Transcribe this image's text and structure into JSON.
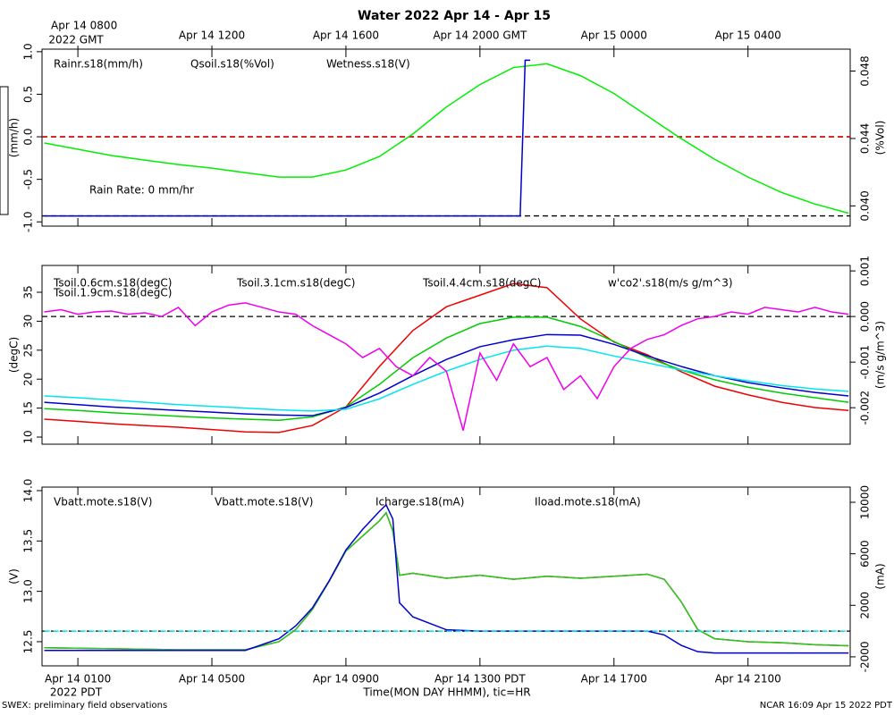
{
  "title": "Water 2022 Apr 14 - Apr 15",
  "footer_left": "SWEX: preliminary field observations",
  "footer_right": "NCAR 16:09 Apr 15 2022 PDT",
  "chart_data": [
    {
      "type": "line",
      "xlim": [
        -0.07,
        24.05
      ],
      "xticks": [
        1,
        5,
        9,
        13,
        17,
        21
      ],
      "x2ticks": [
        {
          "value": 1,
          "label": "Apr 14 0800"
        },
        {
          "value": 5,
          "label": "Apr 14 1200"
        },
        {
          "value": 9,
          "label": "Apr 14 1600"
        },
        {
          "value": 13,
          "label": "Apr 14 2000 GMT"
        },
        {
          "value": 17,
          "label": "Apr 15 0000"
        },
        {
          "value": 21,
          "label": "Apr 15 0400"
        }
      ],
      "x2_sublabel": "2022 GMT",
      "ylim": [
        -1.05,
        1.03
      ],
      "yticks": [
        {
          "value": -1,
          "label": "-1.0"
        },
        -0.5,
        {
          "value": 0,
          "label": "0.0"
        },
        0.5,
        {
          "value": 1,
          "label": "1.0"
        }
      ],
      "ylabel": "(mm/h)",
      "y2lim": [
        0.0388,
        0.0493
      ],
      "y2ticks": [
        {
          "value": 0.04,
          "label": "0.040"
        },
        0.044,
        0.048
      ],
      "y2label": "(%Vol)",
      "ref_lines": [
        0,
        -0.93
      ],
      "annotation": "Rain Rate: 0 mm/hr",
      "x": [
        0,
        1,
        2,
        3,
        4,
        5,
        6,
        7,
        8,
        9,
        10,
        11,
        12,
        13,
        14,
        15,
        16,
        17,
        18,
        19,
        20,
        21,
        22,
        23,
        24
      ],
      "series": [
        {
          "name": "Rainr.s18(mm/h)",
          "color": "#ee0000",
          "dash": true,
          "x": [
            -0.07,
            24.05
          ],
          "values": [
            0,
            0
          ]
        },
        {
          "name": "Qsoil.s18(%Vol)",
          "color": "#00ee00",
          "axis": "y2",
          "values": [
            0.04373,
            0.04336,
            0.04299,
            0.04272,
            0.04245,
            0.04224,
            0.04197,
            0.04171,
            0.04171,
            0.04213,
            0.04293,
            0.04427,
            0.04587,
            0.0472,
            0.04821,
            0.04843,
            0.04773,
            0.04667,
            0.04533,
            0.044,
            0.04277,
            0.04171,
            0.0408,
            0.04011,
            0.03957
          ]
        },
        {
          "name": "Wetness.s18(V)",
          "color": "#0000cc",
          "x": [
            0,
            14.2,
            14.35,
            14.5
          ],
          "values": [
            -0.93,
            -0.93,
            0.9,
            0.9
          ]
        }
      ]
    },
    {
      "type": "line",
      "xlim": [
        -0.07,
        24.05
      ],
      "xticks": [
        1,
        5,
        9,
        13,
        17,
        21
      ],
      "ylim": [
        8.77,
        39.63
      ],
      "yticks": [
        10,
        15,
        20,
        25,
        30,
        35
      ],
      "ylabel": "(degC)",
      "y2lim": [
        -0.0028,
        0.00112
      ],
      "y2ticks": [
        -0.002,
        -0.001,
        {
          "value": 0,
          "label": "0.000"
        },
        0.001
      ],
      "y2label": "(m/s g/m^3)",
      "y2ref_lines": [
        0
      ],
      "x": [
        0,
        1,
        2,
        3,
        4,
        5,
        6,
        7,
        8,
        9,
        10,
        11,
        12,
        13,
        14,
        15,
        16,
        17,
        18,
        19,
        20,
        21,
        22,
        23,
        24
      ],
      "series": [
        {
          "name": "Tsoil.0.6cm.s18(degC)",
          "color": "#ee0000",
          "values": [
            13.1,
            12.7,
            12.3,
            12.0,
            11.7,
            11.3,
            10.9,
            10.8,
            12.0,
            15.2,
            22.2,
            28.4,
            32.5,
            34.5,
            36.5,
            35.8,
            30.4,
            26.4,
            24.2,
            21.3,
            18.8,
            17.3,
            16.0,
            15.1,
            14.6
          ]
        },
        {
          "name": "Tsoil.1.9cm.s18(degC)",
          "color": "#00cc00",
          "values": [
            14.9,
            14.6,
            14.2,
            13.9,
            13.6,
            13.3,
            13.1,
            12.9,
            13.5,
            15.2,
            19.1,
            23.7,
            27.1,
            29.6,
            30.7,
            30.7,
            29.1,
            26.5,
            23.7,
            21.6,
            19.9,
            18.6,
            17.6,
            16.8,
            16.0
          ]
        },
        {
          "name": "Tsoil.3.1cm.s18(degC)",
          "color": "#0000cc",
          "values": [
            16.0,
            15.6,
            15.2,
            14.9,
            14.6,
            14.3,
            14.0,
            13.8,
            13.7,
            15.1,
            17.6,
            20.6,
            23.4,
            25.6,
            26.8,
            27.7,
            27.6,
            26.0,
            24.0,
            22.2,
            20.6,
            19.4,
            18.5,
            17.7,
            17.1
          ]
        },
        {
          "name": "Tsoil.4.4cm.s18(degC)",
          "color": "#00e5ee",
          "values": [
            17.1,
            16.8,
            16.4,
            16.0,
            15.6,
            15.3,
            15.0,
            14.7,
            14.5,
            14.8,
            16.6,
            19.1,
            21.4,
            23.4,
            25.0,
            25.7,
            25.3,
            24.0,
            22.8,
            21.6,
            20.6,
            19.7,
            18.9,
            18.3,
            17.9
          ]
        },
        {
          "name": "w'co2'.s18(m/s g/m^3)",
          "color": "#ee00ee",
          "axis": "y2",
          "x": [
            0,
            0.5,
            1,
            1.5,
            2,
            2.5,
            3,
            3.5,
            4,
            4.5,
            5,
            5.5,
            6,
            6.5,
            7,
            7.5,
            8,
            8.5,
            9,
            9.5,
            10,
            10.5,
            11,
            11.5,
            12,
            12.5,
            13,
            13.5,
            14,
            14.5,
            15,
            15.5,
            16,
            16.5,
            17,
            17.5,
            18,
            18.5,
            19,
            19.5,
            20,
            20.5,
            21,
            21.5,
            22,
            22.5,
            23,
            23.5,
            24
          ],
          "values": [
            0.0001,
            0.00015,
            5e-05,
            0.0001,
            0.00012,
            5e-05,
            8e-05,
            0,
            0.0002,
            -0.0002,
            0.0001,
            0.00025,
            0.0003,
            0.0002,
            0.0001,
            5e-05,
            -0.0002,
            -0.0004,
            -0.0006,
            -0.0009,
            -0.0007,
            -0.0011,
            -0.0013,
            -0.0009,
            -0.0012,
            -0.0025,
            -0.0008,
            -0.0014,
            -0.0006,
            -0.0011,
            -0.0009,
            -0.0016,
            -0.0013,
            -0.0018,
            -0.0011,
            -0.0007,
            -0.0005,
            -0.0004,
            -0.0002,
            -5e-05,
            0,
            0.0001,
            5e-05,
            0.0002,
            0.00015,
            0.0001,
            0.0002,
            0.0001,
            5e-05
          ]
        }
      ]
    },
    {
      "type": "line",
      "xlim": [
        -0.07,
        24.05
      ],
      "xticks": [
        {
          "value": 1,
          "label": "Apr 14 0100"
        },
        {
          "value": 5,
          "label": "Apr 14 0500"
        },
        {
          "value": 9,
          "label": "Apr 14 0900"
        },
        {
          "value": 13,
          "label": "Apr 14 1300 PDT"
        },
        {
          "value": 17,
          "label": "Apr 14 1700"
        },
        {
          "value": 21,
          "label": "Apr 14 2100"
        }
      ],
      "x_sublabel": "2022 PDT",
      "xlabel": "Time(MON DAY HHMM), tic=HR",
      "ylim": [
        12.26,
        14.035
      ],
      "yticks": [
        12.5,
        {
          "value": 13,
          "label": "13.0"
        },
        13.5,
        {
          "value": 14,
          "label": "14.0"
        }
      ],
      "ylabel": "(V)",
      "y2lim": [
        -2700,
        11180
      ],
      "y2ticks": [
        -2000,
        2000,
        6000,
        10000
      ],
      "y2label": "(mA)",
      "y2ref_lines": [
        0
      ],
      "x": [
        0,
        2,
        4,
        6,
        7,
        7.5,
        8,
        8.5,
        9,
        9.5,
        10,
        10.2,
        10.4,
        10.6,
        11,
        12,
        13,
        14,
        15,
        16,
        17,
        18,
        18.5,
        19,
        19.5,
        20,
        21,
        22,
        23,
        24
      ],
      "series": [
        {
          "name": "Vbatt.mote.s18(V)",
          "color": "#ee0000",
          "values": [
            12.44,
            12.43,
            12.42,
            12.42,
            12.5,
            12.62,
            12.82,
            13.1,
            13.4,
            13.55,
            13.7,
            13.78,
            13.6,
            13.16,
            13.18,
            13.13,
            13.16,
            13.12,
            13.15,
            13.13,
            13.15,
            13.17,
            13.12,
            12.9,
            12.62,
            12.53,
            12.5,
            12.49,
            12.47,
            12.46
          ]
        },
        {
          "name": "Vbatt.mote.s18(V)",
          "color": "#22cc22",
          "values": [
            12.44,
            12.43,
            12.42,
            12.42,
            12.5,
            12.62,
            12.82,
            13.1,
            13.4,
            13.55,
            13.7,
            13.78,
            13.6,
            13.16,
            13.18,
            13.13,
            13.16,
            13.12,
            13.15,
            13.13,
            13.15,
            13.17,
            13.12,
            12.9,
            12.62,
            12.53,
            12.5,
            12.49,
            12.47,
            12.46
          ]
        },
        {
          "name": "Icharge.s18(mA)",
          "color": "#0000cc",
          "axis": "y2",
          "values": [
            -1500,
            -1500,
            -1500,
            -1500,
            -600,
            400,
            1800,
            3900,
            6300,
            7900,
            9300,
            9800,
            8700,
            2200,
            1100,
            100,
            0,
            0,
            0,
            0,
            0,
            0,
            -300,
            -1100,
            -1600,
            -1700,
            -1700,
            -1700,
            -1700,
            -1700
          ]
        },
        {
          "name": "Iload.mote.s18(mA)",
          "color": "#00e5ee",
          "axis": "y2",
          "dash": true,
          "values": [
            0,
            0,
            0,
            0,
            0,
            0,
            0,
            0,
            0,
            0,
            0,
            0,
            0,
            0,
            0,
            0,
            0,
            0,
            0,
            0,
            0,
            0,
            0,
            0,
            0,
            0,
            0,
            0,
            0,
            0
          ]
        }
      ]
    }
  ]
}
